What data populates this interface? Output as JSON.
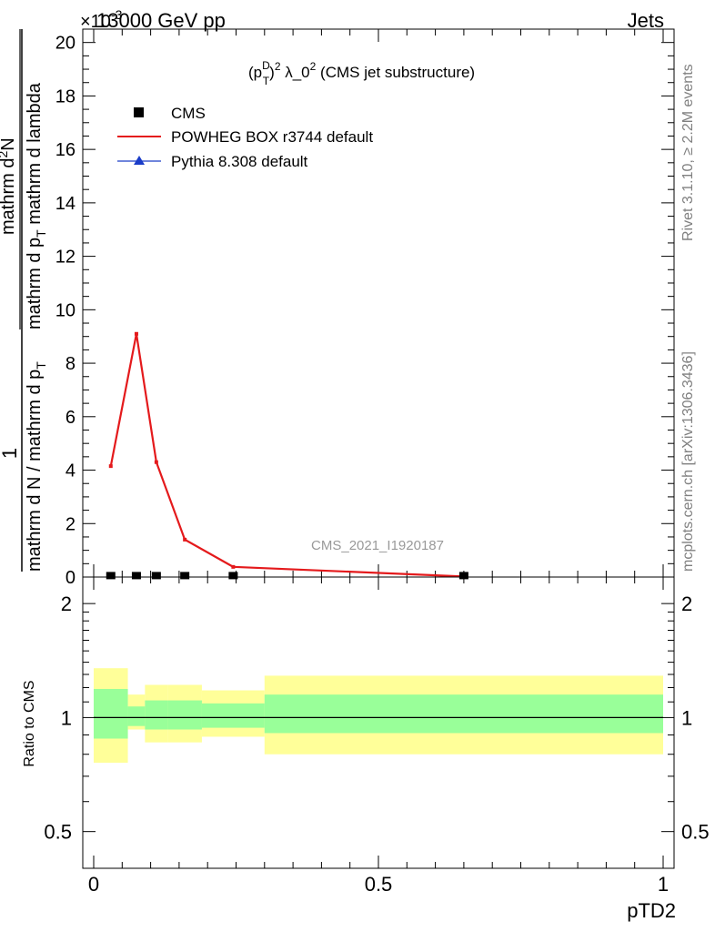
{
  "header": {
    "beam": "13000 GeV pp",
    "process": "Jets",
    "exponent": "×10",
    "exponent_power": "-3"
  },
  "side_labels": {
    "rivet": "Rivet 3.1.10, ≥ 2.2M events",
    "mcplots": "mcplots.cern.ch [arXiv:1306.3436]"
  },
  "chart_data": [
    {
      "type": "line",
      "title": "(p_T^D)^2 λ_0^2 (CMS jet substructure)",
      "title_parts": {
        "open": "(p",
        "sub": "T",
        "sup": "D",
        "close": ")",
        "sup2": "2",
        "body": " λ_0",
        "sup3": "2",
        "tail": " (CMS jet substructure)"
      },
      "ylabel_numerator": "1",
      "ylabel_left": "mathrm d N / mathrm d p",
      "ylabel_left_sub": "T",
      "ylabel_frac_line1": "mathrm d",
      "ylabel_frac_sup": "2",
      "ylabel_frac_line1b": "N",
      "ylabel_frac_line2": "mathrm d p",
      "ylabel_frac_sub": "T",
      "ylabel_frac_line2b": " mathrm d lambda",
      "watermark": "CMS_2021_I1920187",
      "xlim": [
        0,
        1
      ],
      "ylim": [
        0,
        0.0205
      ],
      "y_ticks": [
        0,
        0.002,
        0.004,
        0.006,
        0.008,
        0.01,
        0.012,
        0.014,
        0.016,
        0.018,
        0.02
      ],
      "y_tick_labels": [
        "0",
        "2",
        "4",
        "6",
        "8",
        "10",
        "12",
        "14",
        "16",
        "18",
        "20"
      ],
      "grid": false,
      "legend_position": "top-left",
      "legend": [
        {
          "name": "CMS",
          "marker": "square",
          "color": "#000000"
        },
        {
          "name": "POWHEG BOX r3744 default",
          "marker": "line",
          "color": "#e41a1c"
        },
        {
          "name": "Pythia 8.308 default",
          "marker": "triangle",
          "color": "#1a3cc8"
        }
      ],
      "series": [
        {
          "name": "CMS",
          "x": [
            0.03,
            0.075,
            0.11,
            0.16,
            0.245,
            0.65
          ],
          "y": [
            2e-05,
            2e-05,
            2e-05,
            2e-05,
            2e-05,
            2e-05
          ]
        },
        {
          "name": "POWHEG BOX r3744 default",
          "x": [
            0.03,
            0.075,
            0.11,
            0.16,
            0.245,
            0.65
          ],
          "y": [
            0.00415,
            0.0091,
            0.0043,
            0.0014,
            0.00038,
            2e-05
          ]
        }
      ]
    },
    {
      "type": "area",
      "ylabel": "Ratio to CMS",
      "xlabel": "pTD2",
      "xlim": [
        0,
        1
      ],
      "ylim": [
        0.4,
        2.35
      ],
      "log_y": true,
      "x_ticks": [
        0,
        0.5,
        1
      ],
      "x_tick_labels": [
        "0",
        "0.5",
        "1"
      ],
      "y_ticks": [
        0.5,
        1,
        2
      ],
      "y_tick_labels": [
        "0.5",
        "1",
        "2"
      ],
      "reference_line": 1,
      "colors": {
        "inner": "#99ff99",
        "outer": "#ffff99"
      },
      "bins": [
        {
          "x0": 0.0,
          "x1": 0.06,
          "inner": [
            0.88,
            1.19
          ],
          "outer": [
            0.76,
            1.35
          ]
        },
        {
          "x0": 0.06,
          "x1": 0.09,
          "inner": [
            0.95,
            1.07
          ],
          "outer": [
            0.93,
            1.15
          ]
        },
        {
          "x0": 0.09,
          "x1": 0.13,
          "inner": [
            0.93,
            1.11
          ],
          "outer": [
            0.86,
            1.22
          ]
        },
        {
          "x0": 0.13,
          "x1": 0.19,
          "inner": [
            0.93,
            1.11
          ],
          "outer": [
            0.86,
            1.22
          ]
        },
        {
          "x0": 0.19,
          "x1": 0.3,
          "inner": [
            0.94,
            1.09
          ],
          "outer": [
            0.89,
            1.18
          ]
        },
        {
          "x0": 0.3,
          "x1": 1.0,
          "inner": [
            0.91,
            1.15
          ],
          "outer": [
            0.8,
            1.29
          ]
        }
      ]
    }
  ]
}
